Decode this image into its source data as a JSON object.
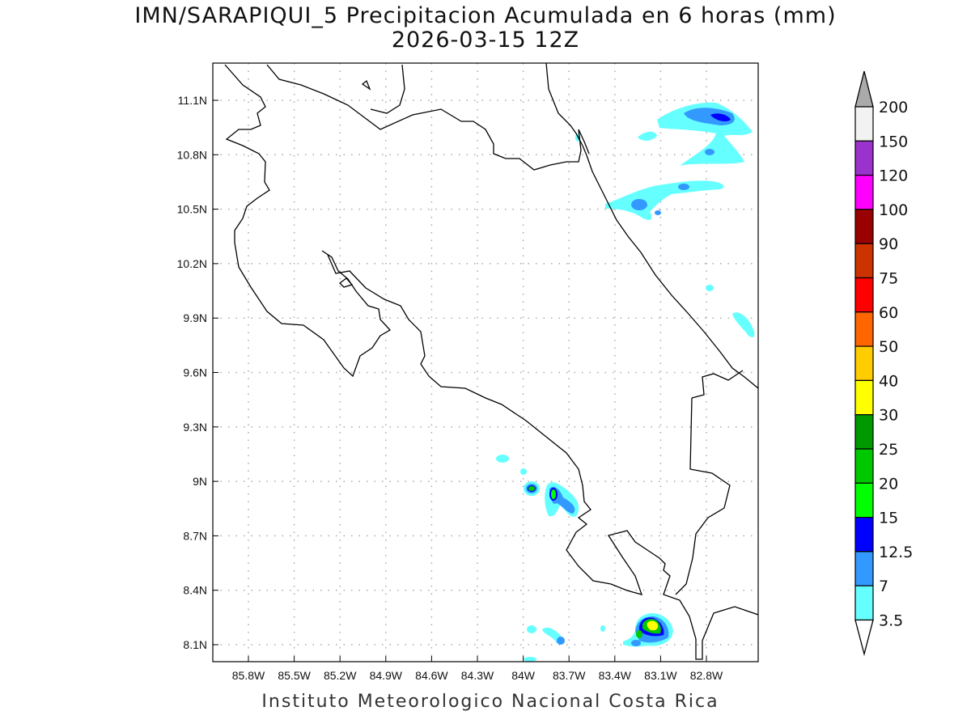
{
  "title": {
    "line1": "IMN/SARAPIQUI_5 Precipitacion Acumulada en 6 horas (mm)",
    "line2": "2026-03-15 12Z"
  },
  "map": {
    "lat_labels": [
      "11.1N",
      "10.8N",
      "10.5N",
      "10.2N",
      "9.9N",
      "9.6N",
      "9.3N",
      "9N",
      "8.7N",
      "8.4N",
      "8.1N"
    ],
    "lon_labels": [
      "85.8W",
      "85.5W",
      "85.2W",
      "84.9W",
      "84.6W",
      "84.3W",
      "84W",
      "83.7W",
      "83.4W",
      "83.1W",
      "82.8W"
    ],
    "coast_color": "#000000",
    "grid_color": "#aaaaaa"
  },
  "colorbar": {
    "levels": [
      "200",
      "150",
      "120",
      "100",
      "90",
      "75",
      "60",
      "50",
      "40",
      "30",
      "25",
      "20",
      "15",
      "12.5",
      "7",
      "3.5"
    ],
    "colors": [
      "#f2f2f2",
      "#9933cc",
      "#ff00ff",
      "#990000",
      "#cc3300",
      "#ff0000",
      "#ff6600",
      "#ffcc00",
      "#ffff00",
      "#009900",
      "#00c800",
      "#00ff00",
      "#0000ff",
      "#3399ff",
      "#66ffff"
    ],
    "over_color": "#aaaaaa",
    "under_color": "#ffffff"
  },
  "footer": "Instituto Meteorologico Nacional Costa Rica"
}
